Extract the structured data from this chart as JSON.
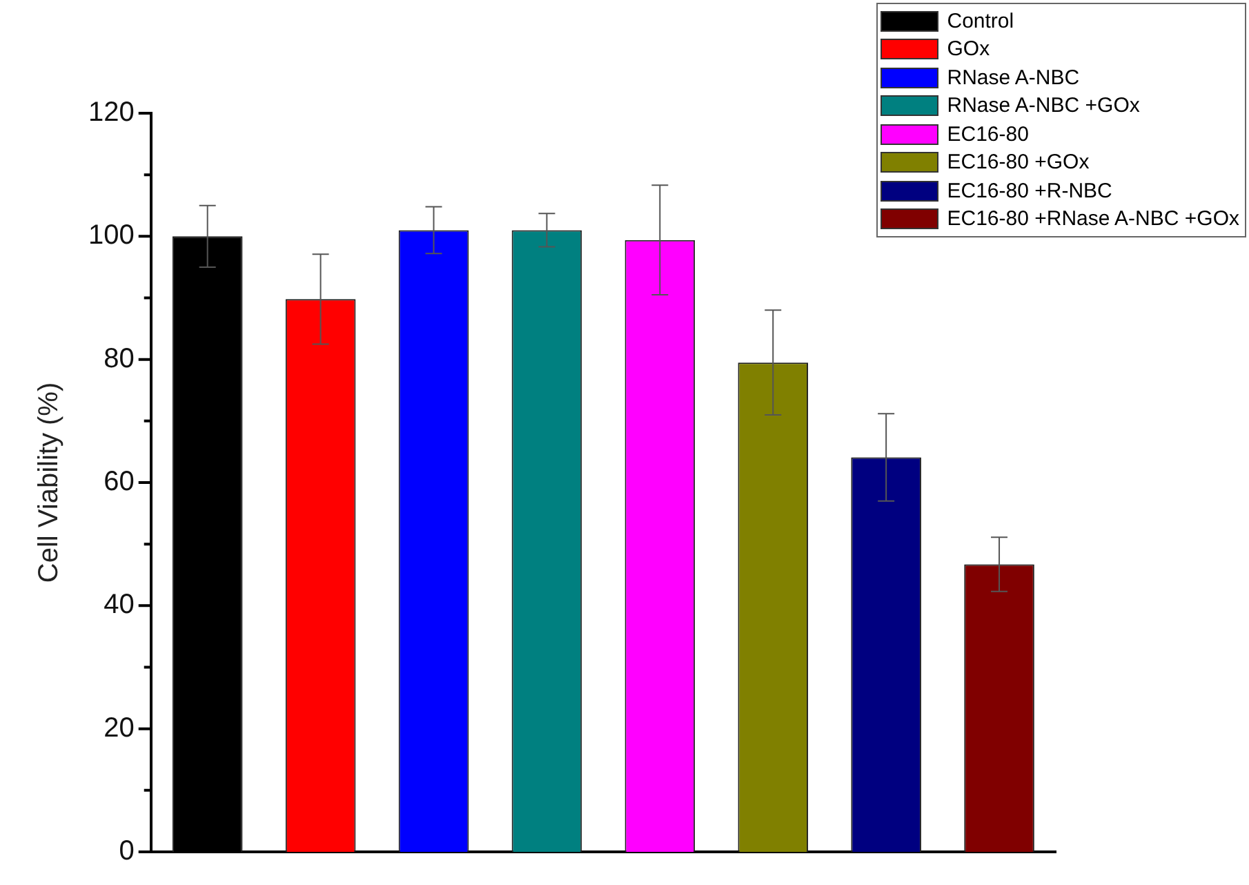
{
  "chart_data": {
    "type": "bar",
    "ylabel": "Cell Viability (%)",
    "categories": [
      null,
      null,
      null,
      null,
      null,
      null,
      null,
      null
    ],
    "series": [
      {
        "name": "Control",
        "color": "#000000",
        "values": [
          100,
          null,
          null,
          null,
          null,
          null,
          null,
          null
        ],
        "errors": [
          5,
          null,
          null,
          null,
          null,
          null,
          null,
          null
        ]
      },
      {
        "name": "GOx",
        "color": "#ff0000",
        "values": [
          null,
          89.8,
          null,
          null,
          null,
          null,
          null,
          null
        ],
        "errors": [
          null,
          7.3,
          null,
          null,
          null,
          null,
          null,
          null
        ]
      },
      {
        "name": "RNase A-NBC",
        "color": "#0000ff",
        "values": [
          null,
          null,
          101,
          null,
          null,
          null,
          null,
          null
        ],
        "errors": [
          null,
          null,
          3.8,
          null,
          null,
          null,
          null,
          null
        ]
      },
      {
        "name": "RNase A-NBC +GOx",
        "color": "#008080",
        "values": [
          null,
          null,
          null,
          101,
          null,
          null,
          null,
          null
        ],
        "errors": [
          null,
          null,
          null,
          2.7,
          null,
          null,
          null,
          null
        ]
      },
      {
        "name": "EC16-80",
        "color": "#ff00ff",
        "values": [
          null,
          null,
          null,
          null,
          99.4,
          null,
          null,
          null
        ],
        "errors": [
          null,
          null,
          null,
          null,
          8.9,
          null,
          null,
          null
        ]
      },
      {
        "name": "EC16-80 +GOx",
        "color": "#808000",
        "values": [
          null,
          null,
          null,
          null,
          null,
          79.5,
          null,
          null
        ],
        "errors": [
          null,
          null,
          null,
          null,
          null,
          8.5,
          null,
          null
        ]
      },
      {
        "name": "EC16-80 +R-NBC",
        "color": "#000080",
        "values": [
          null,
          null,
          null,
          null,
          null,
          null,
          64.1,
          null
        ],
        "errors": [
          null,
          null,
          null,
          null,
          null,
          null,
          7.1,
          null
        ]
      },
      {
        "name": "EC16-80 +RNase A-NBC +GOx",
        "color": "#800000",
        "values": [
          null,
          null,
          null,
          null,
          null,
          null,
          null,
          46.7
        ],
        "errors": [
          null,
          null,
          null,
          null,
          null,
          null,
          null,
          4.4
        ]
      }
    ],
    "ylim": [
      0,
      120
    ],
    "yticks": [
      0,
      {
        "value": 10,
        "label": null
      },
      20,
      {
        "value": 30,
        "label": null
      },
      40,
      {
        "value": 50,
        "label": null
      },
      60,
      {
        "value": 70,
        "label": null
      },
      80,
      {
        "value": 90,
        "label": null
      },
      100,
      {
        "value": 110,
        "label": null
      },
      120
    ],
    "tick_labels": "y",
    "legend": "top right"
  }
}
